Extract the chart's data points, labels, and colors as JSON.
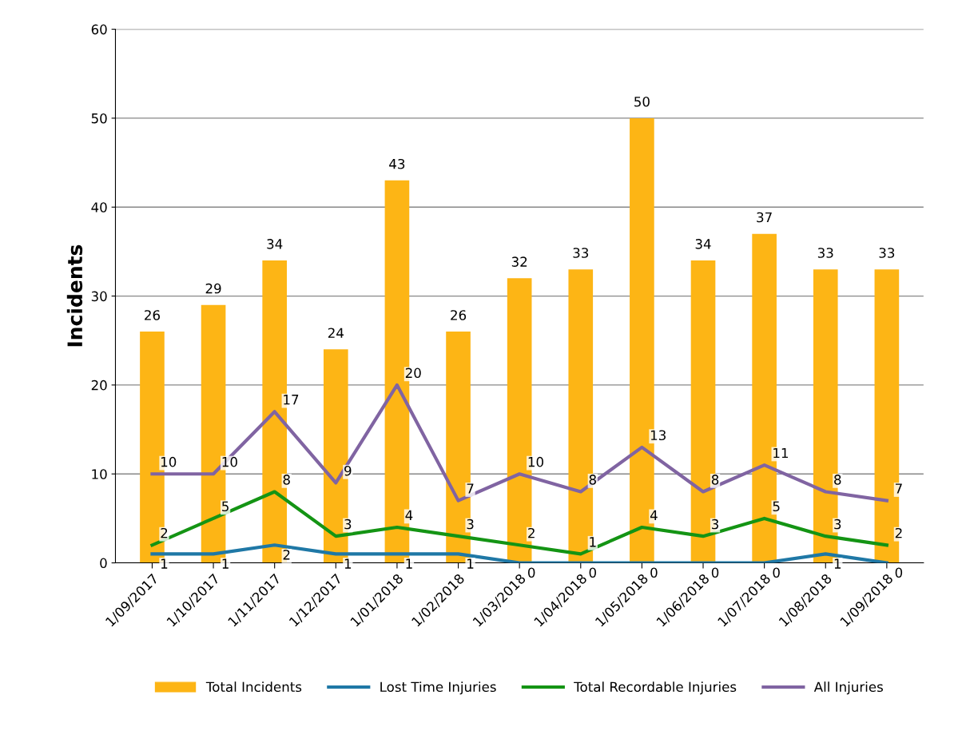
{
  "chart_data": {
    "type": "bar",
    "ylabel": "Incidents",
    "categories": [
      "1/09/2017",
      "1/10/2017",
      "1/11/2017",
      "1/12/2017",
      "1/01/2018",
      "1/02/2018",
      "1/03/2018",
      "1/04/2018",
      "1/05/2018",
      "1/06/2018",
      "1/07/2018",
      "1/08/2018",
      "1/09/2018"
    ],
    "series": [
      {
        "name": "Total Incidents",
        "color": "#fdb515",
        "values": [
          26,
          29,
          34,
          24,
          43,
          26,
          32,
          33,
          50,
          34,
          37,
          33,
          33
        ]
      },
      {
        "name": "Lost Time Injuries",
        "type": "line",
        "color": "#1f78a6",
        "values": [
          1,
          1,
          2,
          1,
          1,
          1,
          0,
          0,
          0,
          0,
          0,
          1,
          0
        ]
      },
      {
        "name": "Total Recordable Injuries",
        "type": "line",
        "color": "#149414",
        "values": [
          2,
          5,
          8,
          3,
          4,
          3,
          2,
          1,
          4,
          3,
          5,
          3,
          2
        ]
      },
      {
        "name": "All Injuries",
        "type": "line",
        "color": "#8064a2",
        "values": [
          10,
          10,
          17,
          9,
          20,
          7,
          10,
          8,
          13,
          8,
          11,
          8,
          7
        ]
      }
    ],
    "ylim": [
      0,
      60
    ],
    "yticks": [
      0,
      10,
      20,
      30,
      40,
      50,
      60
    ],
    "grid": "y",
    "legend": "bottom",
    "data_labels": true,
    "marker": "none",
    "line_style": "solid"
  }
}
